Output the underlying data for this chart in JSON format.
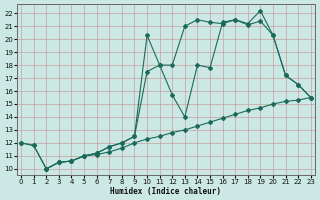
{
  "xlabel": "Humidex (Indice chaleur)",
  "bg_color": "#cce8e4",
  "grid_color": "#aaccc8",
  "line_color": "#1a6b5a",
  "xlim": [
    -0.3,
    23.3
  ],
  "ylim": [
    9.5,
    22.7
  ],
  "xticks": [
    0,
    1,
    2,
    3,
    4,
    5,
    6,
    7,
    8,
    9,
    10,
    11,
    12,
    13,
    14,
    15,
    16,
    17,
    18,
    19,
    20,
    21,
    22,
    23
  ],
  "yticks": [
    10,
    11,
    12,
    13,
    14,
    15,
    16,
    17,
    18,
    19,
    20,
    21,
    22
  ],
  "line1_x": [
    0,
    1,
    2,
    3,
    4,
    5,
    6,
    7,
    8,
    9,
    10,
    11,
    12,
    13,
    14,
    15,
    16,
    17,
    18,
    19,
    20,
    21,
    22,
    23
  ],
  "line1_y": [
    12.0,
    11.8,
    10.0,
    10.5,
    10.6,
    11.0,
    11.1,
    11.3,
    11.6,
    12.0,
    12.3,
    12.5,
    12.8,
    13.0,
    13.3,
    13.6,
    13.9,
    14.2,
    14.5,
    14.7,
    15.0,
    15.2,
    15.3,
    15.5
  ],
  "line2_x": [
    0,
    1,
    2,
    3,
    4,
    5,
    6,
    7,
    8,
    9,
    10,
    11,
    12,
    13,
    14,
    15,
    16,
    17,
    18,
    19,
    20,
    21,
    22,
    23
  ],
  "line2_y": [
    12.0,
    11.8,
    10.0,
    10.5,
    10.6,
    11.0,
    11.2,
    11.7,
    12.0,
    12.5,
    17.5,
    18.0,
    15.7,
    14.0,
    18.0,
    17.8,
    21.3,
    21.5,
    21.1,
    21.4,
    20.3,
    17.2,
    16.5,
    15.5
  ],
  "line3_x": [
    2,
    3,
    4,
    5,
    6,
    7,
    8,
    9,
    10,
    11,
    12,
    13,
    14,
    15,
    16,
    17,
    18,
    19,
    20,
    21,
    22,
    23
  ],
  "line3_y": [
    10.0,
    10.5,
    10.6,
    11.0,
    11.2,
    11.7,
    12.0,
    12.5,
    20.3,
    18.0,
    18.0,
    21.0,
    21.5,
    21.3,
    21.2,
    21.5,
    21.2,
    22.2,
    20.3,
    17.2,
    16.5,
    15.5
  ]
}
